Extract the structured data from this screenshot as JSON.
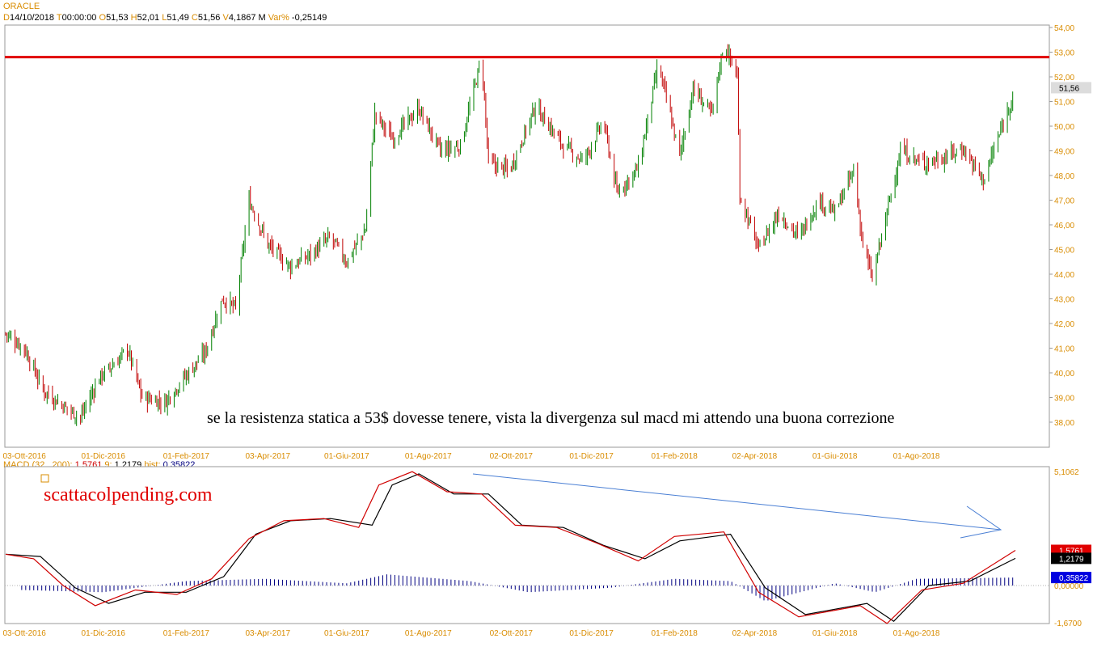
{
  "header": {
    "ticker": "ORACLE",
    "date_label": "D",
    "date": "14/10/2018",
    "time_label": "T",
    "time": "00:00:00",
    "open_label": "O",
    "open": "51,53",
    "high_label": "H",
    "high": "52,01",
    "low_label": "L",
    "low": "51,49",
    "close_label": "C",
    "close": "51,56",
    "volume_label": "V",
    "volume": "4,1867 M",
    "var_label": "Var%",
    "var": "-0,25149"
  },
  "macd_header": {
    "name": "MACD",
    "params": "(32 , 200)",
    "macd_value": "1,5761",
    "signal_label": "9",
    "signal_value": "1,2179",
    "hist_label": "hist",
    "hist_value": "0,35822"
  },
  "annotations": {
    "comment": "se la resistenza statica a 53$ dovesse tenere, vista la divergenza sul macd mi attendo una buona correzione",
    "watermark": "scattacolpending.com"
  },
  "colors": {
    "up_bar": "#008000",
    "down_bar": "#c00000",
    "resistance": "#e00000",
    "macd_line": "#d00000",
    "signal_line": "#000000",
    "histogram": "#000080",
    "trend_arrow": "#4a7fd4",
    "axis_text": "#d98c00"
  },
  "chart_data": [
    {
      "type": "ohlc",
      "title": "ORACLE",
      "y_ticks": [
        "38,00",
        "39,00",
        "40,00",
        "41,00",
        "42,00",
        "43,00",
        "44,00",
        "45,00",
        "46,00",
        "47,00",
        "48,00",
        "49,00",
        "50,00",
        "51,00",
        "52,00",
        "53,00",
        "54,00"
      ],
      "ylim": [
        37.0,
        54.0
      ],
      "x_ticks": [
        "03-Ott-2016",
        "01-Dic-2016",
        "01-Feb-2017",
        "03-Apr-2017",
        "01-Giu-2017",
        "01-Ago-2017",
        "02-Ott-2017",
        "01-Dic-2017",
        "01-Feb-2018",
        "02-Apr-2018",
        "01-Giu-2018",
        "01-Ago-2018"
      ],
      "last_price": "51,56",
      "resistance_level": 52.8,
      "close_path": [
        [
          "2016-09-19",
          41.6
        ],
        [
          "2016-10-03",
          41.0
        ],
        [
          "2016-10-17",
          39.3
        ],
        [
          "2016-10-31",
          38.7
        ],
        [
          "2016-11-14",
          38.2
        ],
        [
          "2016-11-28",
          39.8
        ],
        [
          "2016-12-12",
          40.5
        ],
        [
          "2016-12-19",
          41.0
        ],
        [
          "2016-12-30",
          39.0
        ],
        [
          "2017-01-16",
          38.8
        ],
        [
          "2017-02-01",
          39.9
        ],
        [
          "2017-02-15",
          40.8
        ],
        [
          "2017-02-28",
          43.0
        ],
        [
          "2017-03-10",
          42.6
        ],
        [
          "2017-03-20",
          47.0
        ],
        [
          "2017-04-03",
          45.2
        ],
        [
          "2017-04-20",
          44.3
        ],
        [
          "2017-05-05",
          44.8
        ],
        [
          "2017-05-20",
          45.5
        ],
        [
          "2017-06-01",
          44.5
        ],
        [
          "2017-06-15",
          45.8
        ],
        [
          "2017-06-22",
          50.5
        ],
        [
          "2017-07-05",
          49.5
        ],
        [
          "2017-07-25",
          50.7
        ],
        [
          "2017-08-10",
          49.0
        ],
        [
          "2017-08-25",
          49.2
        ],
        [
          "2017-09-10",
          52.8
        ],
        [
          "2017-09-15",
          48.5
        ],
        [
          "2017-10-01",
          48.2
        ],
        [
          "2017-10-20",
          50.8
        ],
        [
          "2017-11-10",
          49.2
        ],
        [
          "2017-11-25",
          48.6
        ],
        [
          "2017-12-10",
          50.2
        ],
        [
          "2017-12-20",
          47.3
        ],
        [
          "2018-01-05",
          48.3
        ],
        [
          "2018-01-20",
          52.5
        ],
        [
          "2018-02-05",
          48.8
        ],
        [
          "2018-02-15",
          51.5
        ],
        [
          "2018-03-01",
          50.5
        ],
        [
          "2018-03-10",
          53.4
        ],
        [
          "2018-03-20",
          52.0
        ],
        [
          "2018-03-22",
          47.2
        ],
        [
          "2018-04-05",
          45.0
        ],
        [
          "2018-04-20",
          46.5
        ],
        [
          "2018-05-05",
          45.5
        ],
        [
          "2018-05-20",
          47.0
        ],
        [
          "2018-06-01",
          46.5
        ],
        [
          "2018-06-15",
          48.2
        ],
        [
          "2018-06-22",
          45.2
        ],
        [
          "2018-06-29",
          43.8
        ],
        [
          "2018-07-10",
          46.5
        ],
        [
          "2018-07-20",
          49.0
        ],
        [
          "2018-08-05",
          48.5
        ],
        [
          "2018-08-20",
          48.7
        ],
        [
          "2018-09-05",
          49.1
        ],
        [
          "2018-09-20",
          47.8
        ],
        [
          "2018-10-01",
          49.5
        ],
        [
          "2018-10-14",
          51.56
        ]
      ]
    },
    {
      "type": "line",
      "title": "MACD (32 , 200)",
      "y_ticks": [
        "5,1062",
        "0,00000",
        "-1,6700"
      ],
      "ylim": [
        -1.67,
        5.1062
      ],
      "series": [
        {
          "name": "MACD",
          "color": "#d00000",
          "values": [
            [
              "2016-09-19",
              1.4
            ],
            [
              "2016-10-10",
              1.2
            ],
            [
              "2016-11-01",
              0.0
            ],
            [
              "2016-11-25",
              -0.9
            ],
            [
              "2016-12-25",
              -0.2
            ],
            [
              "2017-01-25",
              -0.4
            ],
            [
              "2017-02-20",
              0.3
            ],
            [
              "2017-03-20",
              2.1
            ],
            [
              "2017-04-15",
              2.9
            ],
            [
              "2017-05-15",
              3.0
            ],
            [
              "2017-06-10",
              2.6
            ],
            [
              "2017-06-25",
              4.5
            ],
            [
              "2017-07-20",
              5.1
            ],
            [
              "2017-08-15",
              4.2
            ],
            [
              "2017-09-10",
              4.1
            ],
            [
              "2017-10-05",
              2.7
            ],
            [
              "2017-11-05",
              2.6
            ],
            [
              "2017-12-05",
              1.9
            ],
            [
              "2018-01-05",
              1.1
            ],
            [
              "2018-02-01",
              2.2
            ],
            [
              "2018-03-10",
              2.4
            ],
            [
              "2018-04-05",
              -0.3
            ],
            [
              "2018-05-05",
              -1.4
            ],
            [
              "2018-06-20",
              -0.9
            ],
            [
              "2018-07-10",
              -1.7
            ],
            [
              "2018-08-05",
              -0.2
            ],
            [
              "2018-09-05",
              0.1
            ],
            [
              "2018-10-14",
              1.5761
            ]
          ]
        },
        {
          "name": "9",
          "color": "#000000",
          "values": [
            [
              "2016-09-19",
              1.4
            ],
            [
              "2016-10-15",
              1.3
            ],
            [
              "2016-11-10",
              -0.1
            ],
            [
              "2016-12-05",
              -0.8
            ],
            [
              "2017-01-01",
              -0.3
            ],
            [
              "2017-02-01",
              -0.3
            ],
            [
              "2017-03-01",
              0.4
            ],
            [
              "2017-03-25",
              2.3
            ],
            [
              "2017-04-20",
              2.9
            ],
            [
              "2017-05-20",
              3.0
            ],
            [
              "2017-06-20",
              2.7
            ],
            [
              "2017-07-05",
              4.5
            ],
            [
              "2017-07-25",
              5.0
            ],
            [
              "2017-08-20",
              4.1
            ],
            [
              "2017-09-15",
              4.1
            ],
            [
              "2017-10-10",
              2.7
            ],
            [
              "2017-11-10",
              2.6
            ],
            [
              "2017-12-10",
              1.8
            ],
            [
              "2018-01-10",
              1.2
            ],
            [
              "2018-02-05",
              2.0
            ],
            [
              "2018-03-15",
              2.3
            ],
            [
              "2018-04-10",
              -0.1
            ],
            [
              "2018-05-10",
              -1.3
            ],
            [
              "2018-06-25",
              -0.8
            ],
            [
              "2018-07-15",
              -1.6
            ],
            [
              "2018-08-10",
              0.0
            ],
            [
              "2018-09-10",
              0.2
            ],
            [
              "2018-10-14",
              1.2179
            ]
          ]
        },
        {
          "name": "hist",
          "color": "#000080",
          "values": [
            [
              "2016-10-01",
              -0.2
            ],
            [
              "2016-12-01",
              -0.3
            ],
            [
              "2017-02-01",
              0.2
            ],
            [
              "2017-04-01",
              0.3
            ],
            [
              "2017-06-01",
              0.1
            ],
            [
              "2017-07-01",
              0.5
            ],
            [
              "2017-09-01",
              0.2
            ],
            [
              "2017-10-15",
              -0.3
            ],
            [
              "2017-12-15",
              -0.1
            ],
            [
              "2018-02-01",
              0.3
            ],
            [
              "2018-03-15",
              0.2
            ],
            [
              "2018-04-10",
              -0.7
            ],
            [
              "2018-06-01",
              0.1
            ],
            [
              "2018-07-01",
              -0.3
            ],
            [
              "2018-08-01",
              0.3
            ],
            [
              "2018-10-14",
              0.35822
            ]
          ]
        }
      ],
      "x_ticks": [
        "03-Ott-2016",
        "01-Dic-2016",
        "01-Feb-2017",
        "03-Apr-2017",
        "01-Giu-2017",
        "01-Ago-2017",
        "02-Ott-2017",
        "01-Dic-2017",
        "01-Feb-2018",
        "02-Apr-2018",
        "01-Giu-2018",
        "01-Ago-2018"
      ]
    }
  ]
}
